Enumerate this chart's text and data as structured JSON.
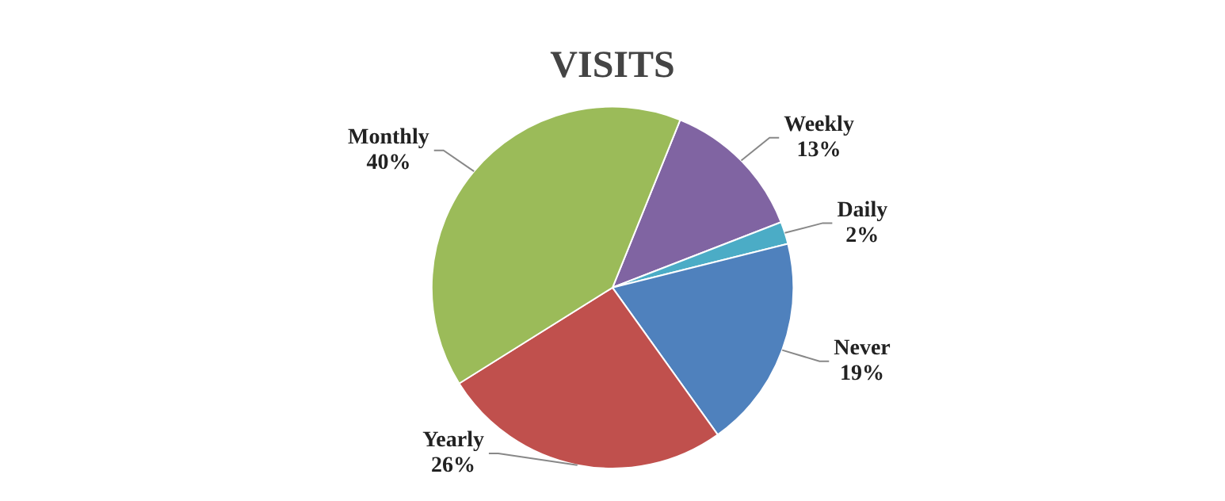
{
  "chart_data": {
    "type": "pie",
    "title": "VISITS",
    "categories": [
      "Weekly",
      "Daily",
      "Never",
      "Yearly",
      "Monthly"
    ],
    "values": [
      13,
      2,
      19,
      26,
      40
    ],
    "value_labels": [
      "13%",
      "2%",
      "19%",
      "26%",
      "40%"
    ],
    "colors": [
      "#8064a2",
      "#4bacc6",
      "#4f81bd",
      "#c0504d",
      "#9bbb59"
    ],
    "legend": false
  }
}
